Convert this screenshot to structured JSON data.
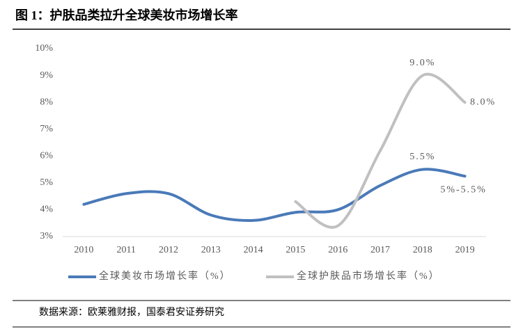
{
  "chart_data": {
    "type": "line",
    "title": "图 1：护肤品类拉升全球美妆市场增长率",
    "source": "数据来源：欧莱雅财报，国泰君安证券研究",
    "categories": [
      "2010",
      "2011",
      "2012",
      "2013",
      "2014",
      "2015",
      "2016",
      "2017",
      "2018",
      "2019"
    ],
    "series": [
      {
        "name": "全球美妆市场增长率（%）",
        "color": "#4a7ab8",
        "values": [
          4.2,
          4.6,
          4.6,
          3.8,
          3.6,
          3.9,
          4.0,
          4.9,
          5.5,
          5.25
        ],
        "value_labels": [
          null,
          null,
          null,
          null,
          null,
          null,
          null,
          null,
          "5.5%",
          "5%-5.5%"
        ]
      },
      {
        "name": "全球护肤品市场增长率（%）",
        "color": "#c0c0c0",
        "values": [
          null,
          null,
          null,
          null,
          null,
          4.3,
          3.4,
          6.2,
          9.0,
          8.0
        ],
        "value_labels": [
          null,
          null,
          null,
          null,
          null,
          null,
          null,
          null,
          "9.0%",
          "8.0%"
        ]
      }
    ],
    "ylim": [
      3,
      10
    ],
    "yticks": [
      {
        "value": 3,
        "label": "3%"
      },
      {
        "value": 4,
        "label": "4%"
      },
      {
        "value": 5,
        "label": "5%"
      },
      {
        "value": 6,
        "label": "6%"
      },
      {
        "value": 7,
        "label": "7%"
      },
      {
        "value": 8,
        "label": "8%"
      },
      {
        "value": 9,
        "label": "9%"
      },
      {
        "value": 10,
        "label": "10%"
      }
    ],
    "grid": false,
    "legend": "bottom"
  }
}
